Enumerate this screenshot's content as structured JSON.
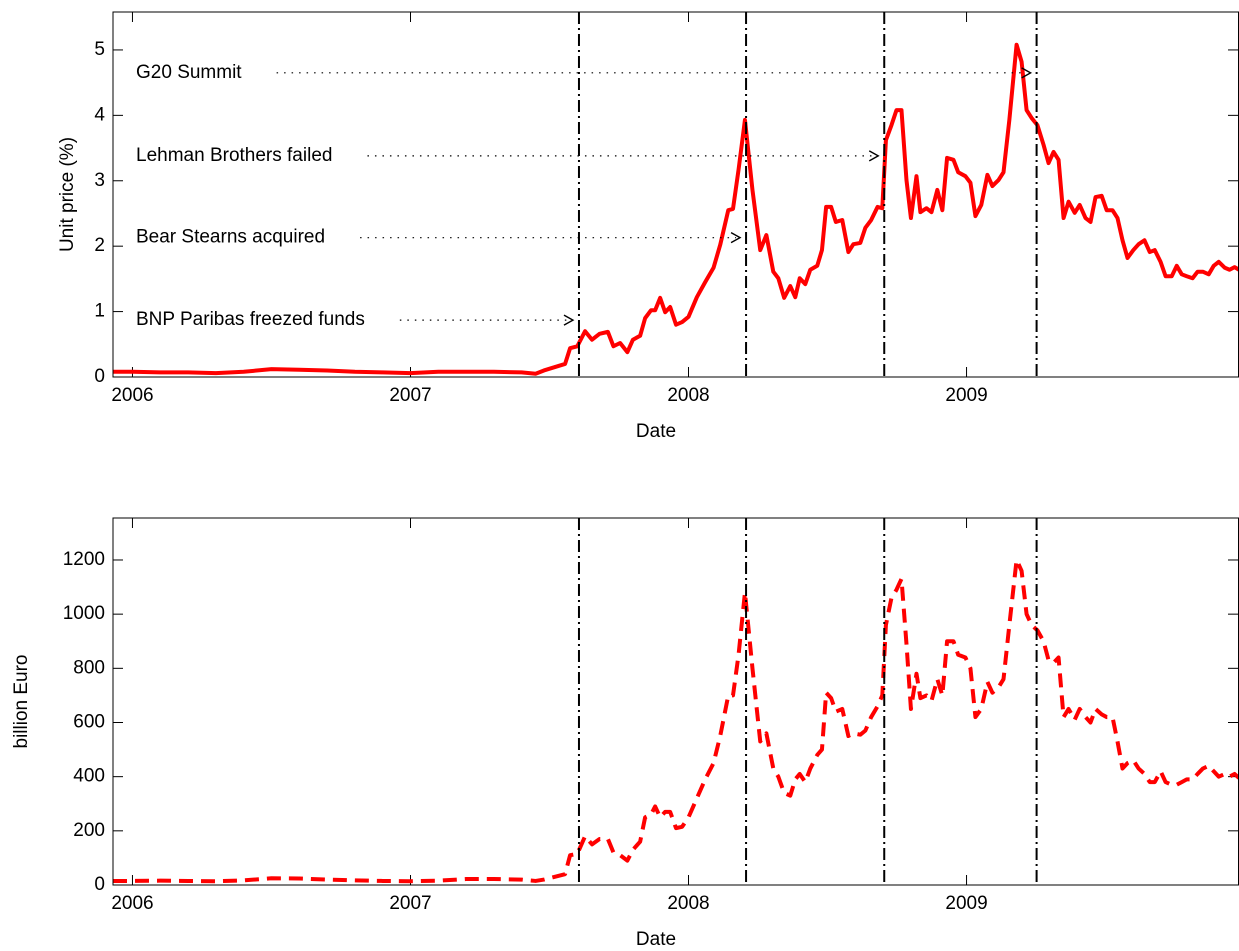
{
  "chart_data": [
    {
      "type": "line",
      "xlabel": "Date",
      "ylabel": "Unit price (%)",
      "xlim": [
        2005.93,
        2009.98
      ],
      "xticks": [
        2006,
        2007,
        2008,
        2009
      ],
      "ylim": [
        0,
        5.58
      ],
      "yticks": [
        0,
        1,
        2,
        3,
        4,
        5
      ],
      "x": [
        2005.93,
        2006.0,
        2006.1,
        2006.2,
        2006.3,
        2006.4,
        2006.5,
        2006.6,
        2006.7,
        2006.8,
        2006.9,
        2007.0,
        2007.1,
        2007.2,
        2007.3,
        2007.4,
        2007.45,
        2007.48,
        2007.556,
        2007.574,
        2007.6,
        2007.628,
        2007.653,
        2007.68,
        2007.71,
        2007.73,
        2007.754,
        2007.78,
        2007.8,
        2007.826,
        2007.844,
        2007.865,
        2007.88,
        2007.898,
        2007.916,
        2007.934,
        2007.955,
        2007.977,
        2008.0,
        2008.03,
        2008.06,
        2008.09,
        2008.114,
        2008.143,
        2008.16,
        2008.18,
        2008.203,
        2008.23,
        2008.258,
        2008.28,
        2008.305,
        2008.323,
        2008.344,
        2008.366,
        2008.384,
        2008.4,
        2008.42,
        2008.438,
        2008.463,
        2008.48,
        2008.495,
        2008.513,
        2008.53,
        2008.553,
        2008.575,
        2008.593,
        2008.618,
        2008.636,
        2008.657,
        2008.68,
        2008.697,
        2008.71,
        2008.73,
        2008.748,
        2008.766,
        2008.784,
        2008.8,
        2008.82,
        2008.834,
        2008.856,
        2008.874,
        2008.895,
        2008.913,
        2008.93,
        2008.953,
        2008.97,
        2008.996,
        2009.014,
        2009.032,
        2009.053,
        2009.075,
        2009.093,
        2009.115,
        2009.133,
        2009.154,
        2009.18,
        2009.198,
        2009.216,
        2009.234,
        2009.255,
        2009.277,
        2009.295,
        2009.313,
        2009.331,
        2009.349,
        2009.367,
        2009.389,
        2009.407,
        2009.428,
        2009.446,
        2009.464,
        2009.486,
        2009.504,
        2009.525,
        2009.543,
        2009.561,
        2009.579,
        2009.6,
        2009.619,
        2009.64,
        2009.659,
        2009.677,
        2009.698,
        2009.716,
        2009.738,
        2009.756,
        2009.774,
        2009.792,
        2009.813,
        2009.831,
        2009.85,
        2009.871,
        2009.889,
        2009.907,
        2009.929,
        2009.946,
        2009.964,
        2009.98
      ],
      "series": [
        {
          "color": "#ff0000",
          "style": "solid",
          "values": [
            0.08,
            0.08,
            0.07,
            0.07,
            0.06,
            0.08,
            0.12,
            0.11,
            0.1,
            0.08,
            0.07,
            0.06,
            0.08,
            0.08,
            0.08,
            0.07,
            0.05,
            0.1,
            0.2,
            0.44,
            0.47,
            0.7,
            0.57,
            0.66,
            0.69,
            0.47,
            0.52,
            0.38,
            0.57,
            0.63,
            0.9,
            1.02,
            1.02,
            1.21,
            0.99,
            1.07,
            0.8,
            0.84,
            0.92,
            1.22,
            1.45,
            1.67,
            2.02,
            2.55,
            2.57,
            3.17,
            3.93,
            2.86,
            1.94,
            2.17,
            1.61,
            1.51,
            1.21,
            1.39,
            1.22,
            1.51,
            1.42,
            1.64,
            1.7,
            1.94,
            2.6,
            2.6,
            2.37,
            2.4,
            1.91,
            2.03,
            2.05,
            2.28,
            2.4,
            2.6,
            2.58,
            3.62,
            3.85,
            4.08,
            4.08,
            3.01,
            2.43,
            3.07,
            2.52,
            2.58,
            2.52,
            2.86,
            2.55,
            3.35,
            3.32,
            3.13,
            3.07,
            2.97,
            2.46,
            2.63,
            3.09,
            2.92,
            3.01,
            3.13,
            3.93,
            5.08,
            4.82,
            4.08,
            3.96,
            3.85,
            3.55,
            3.27,
            3.44,
            3.32,
            2.43,
            2.68,
            2.51,
            2.63,
            2.43,
            2.37,
            2.75,
            2.77,
            2.55,
            2.55,
            2.43,
            2.09,
            1.82,
            1.94,
            2.03,
            2.09,
            1.91,
            1.94,
            1.76,
            1.54,
            1.54,
            1.7,
            1.57,
            1.54,
            1.51,
            1.61,
            1.61,
            1.57,
            1.7,
            1.76,
            1.67,
            1.64,
            1.68,
            1.64
          ]
        }
      ],
      "vlines": [
        2007.606,
        2008.207,
        2008.704,
        2009.252
      ],
      "annotations": [
        {
          "text": "BNP Paribas freezed funds",
          "x": 2007.606,
          "y": 0.87
        },
        {
          "text": "Bear Stearns acquired",
          "x": 2008.207,
          "y": 2.13
        },
        {
          "text": "Lehman Brothers failed",
          "x": 2008.704,
          "y": 3.38
        },
        {
          "text": "G20 Summit",
          "x": 2009.252,
          "y": 4.65
        }
      ]
    },
    {
      "type": "line",
      "xlabel": "Date",
      "ylabel": "billion Euro",
      "xlim": [
        2005.93,
        2009.98
      ],
      "xticks": [
        2006,
        2007,
        2008,
        2009
      ],
      "ylim": [
        0,
        1355
      ],
      "yticks": [
        0,
        200,
        400,
        600,
        800,
        1000,
        1200
      ],
      "x": [
        2005.93,
        2006.0,
        2006.1,
        2006.2,
        2006.3,
        2006.4,
        2006.5,
        2006.6,
        2006.7,
        2006.8,
        2006.9,
        2007.0,
        2007.1,
        2007.2,
        2007.3,
        2007.4,
        2007.45,
        2007.48,
        2007.556,
        2007.574,
        2007.6,
        2007.628,
        2007.653,
        2007.68,
        2007.71,
        2007.73,
        2007.754,
        2007.78,
        2007.8,
        2007.826,
        2007.844,
        2007.865,
        2007.88,
        2007.898,
        2007.916,
        2007.934,
        2007.955,
        2007.977,
        2008.0,
        2008.03,
        2008.06,
        2008.09,
        2008.114,
        2008.143,
        2008.16,
        2008.18,
        2008.203,
        2008.23,
        2008.258,
        2008.28,
        2008.305,
        2008.323,
        2008.344,
        2008.366,
        2008.384,
        2008.4,
        2008.42,
        2008.438,
        2008.463,
        2008.48,
        2008.495,
        2008.513,
        2008.53,
        2008.553,
        2008.575,
        2008.593,
        2008.618,
        2008.636,
        2008.657,
        2008.68,
        2008.697,
        2008.71,
        2008.73,
        2008.748,
        2008.766,
        2008.784,
        2008.8,
        2008.82,
        2008.834,
        2008.856,
        2008.874,
        2008.895,
        2008.913,
        2008.93,
        2008.953,
        2008.97,
        2008.996,
        2009.014,
        2009.032,
        2009.053,
        2009.075,
        2009.093,
        2009.115,
        2009.133,
        2009.154,
        2009.18,
        2009.198,
        2009.216,
        2009.234,
        2009.255,
        2009.277,
        2009.295,
        2009.313,
        2009.331,
        2009.349,
        2009.367,
        2009.389,
        2009.407,
        2009.428,
        2009.446,
        2009.464,
        2009.486,
        2009.504,
        2009.525,
        2009.543,
        2009.561,
        2009.579,
        2009.6,
        2009.619,
        2009.64,
        2009.659,
        2009.677,
        2009.698,
        2009.716,
        2009.738,
        2009.756,
        2009.774,
        2009.792,
        2009.813,
        2009.831,
        2009.85,
        2009.871,
        2009.889,
        2009.907,
        2009.929,
        2009.946,
        2009.964,
        2009.98
      ],
      "series": [
        {
          "color": "#ff0000",
          "style": "dashed",
          "values": [
            15,
            15,
            16,
            15,
            14,
            17,
            25,
            24,
            20,
            17,
            15,
            14,
            16,
            22,
            22,
            20,
            15,
            20,
            40,
            110,
            115,
            180,
            150,
            170,
            170,
            120,
            110,
            90,
            130,
            160,
            250,
            260,
            290,
            250,
            270,
            270,
            210,
            215,
            250,
            320,
            390,
            450,
            550,
            700,
            700,
            850,
            1080,
            800,
            530,
            560,
            430,
            400,
            340,
            330,
            390,
            410,
            380,
            430,
            480,
            500,
            710,
            690,
            640,
            650,
            550,
            560,
            555,
            570,
            620,
            660,
            700,
            960,
            1060,
            1090,
            1130,
            890,
            650,
            780,
            690,
            700,
            680,
            760,
            700,
            900,
            900,
            850,
            840,
            800,
            620,
            650,
            750,
            710,
            730,
            760,
            960,
            1200,
            1160,
            1000,
            960,
            940,
            900,
            830,
            820,
            840,
            620,
            650,
            610,
            650,
            620,
            600,
            650,
            630,
            620,
            620,
            530,
            430,
            450,
            460,
            430,
            410,
            380,
            380,
            420,
            380,
            370,
            370,
            380,
            390,
            390,
            410,
            430,
            440,
            420,
            400,
            410,
            400,
            410,
            395
          ]
        }
      ],
      "vlines": [
        2007.606,
        2008.207,
        2008.704,
        2009.252
      ]
    }
  ]
}
